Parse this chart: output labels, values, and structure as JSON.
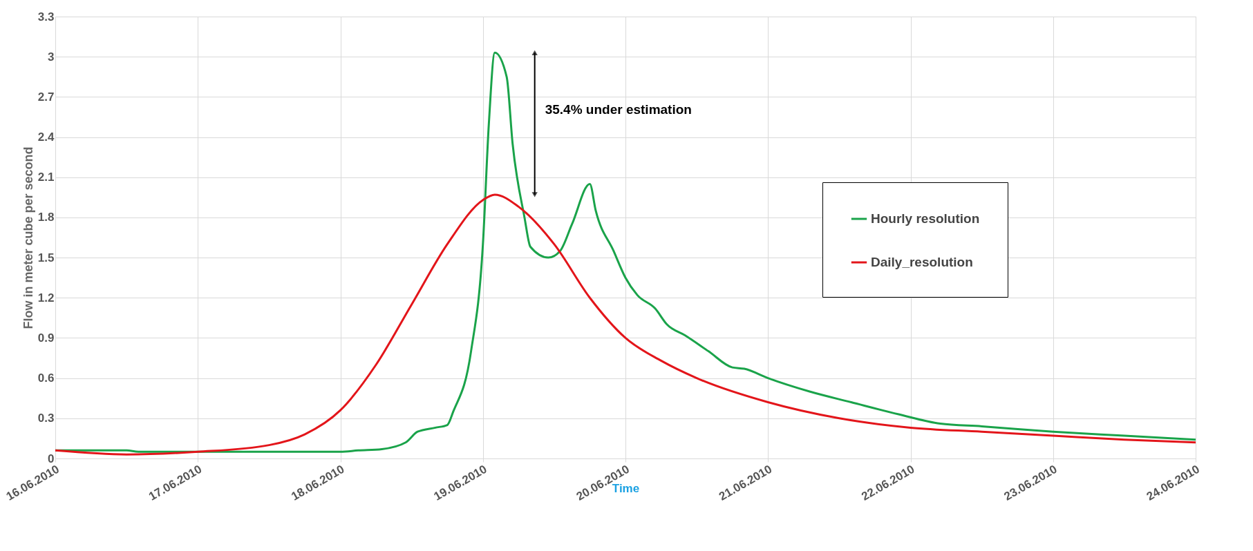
{
  "chart_data": {
    "type": "line",
    "xlabel": "Time",
    "ylabel": "Flow in meter cube per second",
    "xlim": [
      "2010-06-16T00:00",
      "2010-06-24T00:00"
    ],
    "xticks": [
      {
        "value": "2010-06-16",
        "label": "16.06.2010"
      },
      {
        "value": "2010-06-17",
        "label": "17.06.2010"
      },
      {
        "value": "2010-06-18",
        "label": "18.06.2010"
      },
      {
        "value": "2010-06-19",
        "label": "19.06.2010"
      },
      {
        "value": "2010-06-20",
        "label": "20.06.2010"
      },
      {
        "value": "2010-06-21",
        "label": "21.06.2010"
      },
      {
        "value": "2010-06-22",
        "label": "22.06.2010"
      },
      {
        "value": "2010-06-23",
        "label": "23.06.2010"
      },
      {
        "value": "2010-06-24",
        "label": "24.06.2010"
      }
    ],
    "ylim": [
      0,
      3.3
    ],
    "yticks": [
      0,
      0.3,
      0.6,
      0.9,
      1.2,
      1.5,
      1.8,
      2.1,
      2.4,
      2.7,
      3,
      3.3
    ],
    "grid": true,
    "legend": "right",
    "line_style": "solid",
    "annotations": [
      "35.4% under estimation"
    ],
    "series": [
      {
        "name": "Hourly resolution",
        "color": "#1aa34a",
        "x": [
          "2010-06-16T00:00",
          "2010-06-16T12:00",
          "2010-06-16T14:00",
          "2010-06-17T00:00",
          "2010-06-18T00:00",
          "2010-06-18T03:00",
          "2010-06-18T07:00",
          "2010-06-18T11:00",
          "2010-06-18T13:00",
          "2010-06-18T16:00",
          "2010-06-18T18:00",
          "2010-06-18T19:00",
          "2010-06-18T22:00",
          "2010-06-19T00:00",
          "2010-06-19T01:00",
          "2010-06-19T02:00",
          "2010-06-19T04:00",
          "2010-06-19T05:00",
          "2010-06-19T07:00",
          "2010-06-19T08:00",
          "2010-06-19T11:00",
          "2010-06-19T13:00",
          "2010-06-19T15:00",
          "2010-06-19T18:00",
          "2010-06-19T19:00",
          "2010-06-19T22:00",
          "2010-06-20T00:00",
          "2010-06-20T02:00",
          "2010-06-20T05:00",
          "2010-06-20T07:00",
          "2010-06-20T10:00",
          "2010-06-20T14:00",
          "2010-06-20T18:00",
          "2010-06-20T20:00",
          "2010-06-21T00:00",
          "2010-06-21T07:00",
          "2010-06-21T14:00",
          "2010-06-21T22:00",
          "2010-06-22T05:00",
          "2010-06-22T12:00",
          "2010-06-23T00:00",
          "2010-06-23T12:00",
          "2010-06-24T00:00"
        ],
        "values": [
          0.06,
          0.06,
          0.05,
          0.05,
          0.05,
          0.06,
          0.07,
          0.12,
          0.2,
          0.23,
          0.25,
          0.35,
          0.8,
          1.6,
          2.5,
          3.03,
          2.85,
          2.35,
          1.8,
          1.58,
          1.5,
          1.55,
          1.75,
          2.05,
          1.85,
          1.55,
          1.35,
          1.22,
          1.12,
          1.0,
          0.92,
          0.8,
          0.68,
          0.67,
          0.6,
          0.5,
          0.42,
          0.33,
          0.26,
          0.24,
          0.2,
          0.17,
          0.14
        ]
      },
      {
        "name": "Daily_resolution",
        "color": "#e3151a",
        "x": [
          "2010-06-16T00:00",
          "2010-06-16T12:00",
          "2010-06-17T00:00",
          "2010-06-17T12:00",
          "2010-06-17T18:00",
          "2010-06-18T00:00",
          "2010-06-18T06:00",
          "2010-06-18T12:00",
          "2010-06-18T18:00",
          "2010-06-19T00:00",
          "2010-06-19T02:00",
          "2010-06-19T06:00",
          "2010-06-19T12:00",
          "2010-06-19T18:00",
          "2010-06-20T00:00",
          "2010-06-20T06:00",
          "2010-06-20T12:00",
          "2010-06-21T00:00",
          "2010-06-21T12:00",
          "2010-06-22T00:00",
          "2010-06-22T12:00",
          "2010-06-23T00:00",
          "2010-06-23T12:00",
          "2010-06-24T00:00"
        ],
        "values": [
          0.06,
          0.03,
          0.05,
          0.1,
          0.18,
          0.36,
          0.7,
          1.15,
          1.6,
          1.93,
          1.97,
          1.88,
          1.6,
          1.2,
          0.9,
          0.73,
          0.6,
          0.42,
          0.3,
          0.23,
          0.2,
          0.17,
          0.14,
          0.12
        ]
      }
    ]
  }
}
